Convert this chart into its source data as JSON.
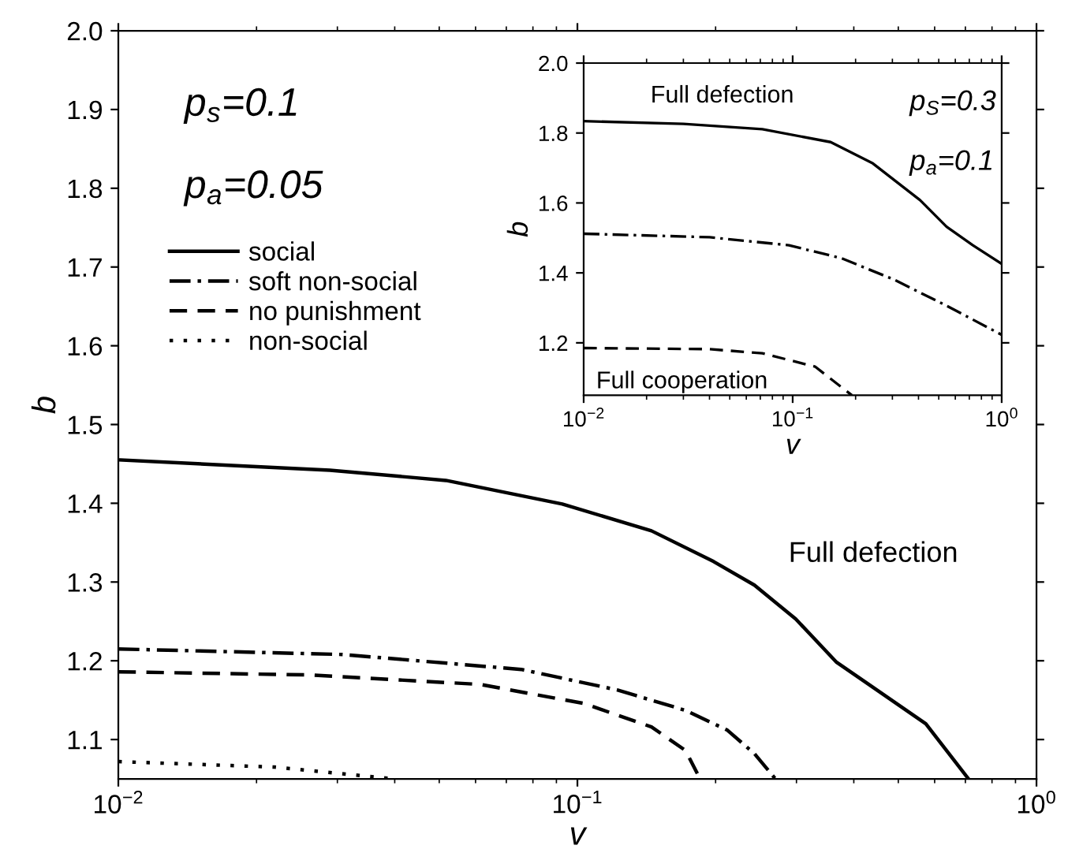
{
  "chart_data": [
    {
      "type": "line",
      "xlabel": "v",
      "ylabel": "b",
      "log": "x",
      "xlim": [
        0.01,
        1
      ],
      "ylim": [
        1.05,
        2.0
      ],
      "xticks": [
        {
          "value": 0.01,
          "label": "10$^{−2}$"
        },
        {
          "value": 0.1,
          "label": "10$^{−1}$"
        },
        {
          "value": 1,
          "label": "10$^{0}$"
        }
      ],
      "yticks": [
        1.1,
        1.2,
        1.3,
        1.4,
        1.5,
        1.6,
        1.7,
        1.8,
        1.9,
        {
          "value": 2.0,
          "label": "2.0"
        }
      ],
      "legend": "top left",
      "grid": false,
      "marker": "none",
      "annotations": [
        "p$_{s}$=0.1",
        "p$_{a}$=0.05",
        "Full defection"
      ],
      "series": [
        {
          "name": "social",
          "color": "#000000",
          "line_style": "solid",
          "x": [
            0.0101,
            0.0289,
            0.0517,
            0.0927,
            0.145,
            0.198,
            0.243,
            0.299,
            0.367,
            0.436,
            0.574,
            0.637,
            0.711
          ],
          "values": [
            1.455,
            1.442,
            1.429,
            1.399,
            1.365,
            1.326,
            1.296,
            1.253,
            1.198,
            1.168,
            1.12,
            1.086,
            1.05
          ]
        },
        {
          "name": "soft non-social",
          "color": "#000000",
          "line_style": "dashdot",
          "x": [
            0.01,
            0.0308,
            0.0755,
            0.122,
            0.172,
            0.212,
            0.243,
            0.27
          ],
          "values": [
            1.215,
            1.208,
            1.189,
            1.163,
            1.137,
            1.112,
            1.082,
            1.05
          ]
        },
        {
          "name": "no punishment",
          "color": "#000000",
          "line_style": "dashed",
          "x": [
            0.01,
            0.026,
            0.0613,
            0.103,
            0.145,
            0.172,
            0.185
          ],
          "values": [
            1.186,
            1.182,
            1.17,
            1.146,
            1.116,
            1.086,
            1.05
          ]
        },
        {
          "name": "non-social",
          "color": "#000000",
          "line_style": "dotted",
          "x": [
            0.01,
            0.0219,
            0.0399
          ],
          "values": [
            1.072,
            1.065,
            1.05
          ]
        }
      ]
    },
    {
      "type": "line",
      "xlabel": "v",
      "ylabel": "b",
      "log": "x",
      "xlim": [
        0.01,
        1
      ],
      "ylim": [
        1.05,
        2.0
      ],
      "xticks": [
        {
          "value": 0.01,
          "label": "10$^{−2}$"
        },
        {
          "value": 0.1,
          "label": "10$^{−1}$"
        },
        {
          "value": 1,
          "label": "10$^{0}$"
        }
      ],
      "yticks": [
        1.2,
        1.4,
        1.6,
        1.8,
        {
          "value": 2.0,
          "label": "2.0"
        }
      ],
      "grid": false,
      "marker": "none",
      "annotations": [
        "Full defection",
        "Full cooperation",
        "p$_{S}$=0.3",
        "p$_{a}$=0.1"
      ],
      "series": [
        {
          "color": "#000000",
          "line_style": "solid",
          "x": [
            0.01,
            0.03,
            0.0716,
            0.152,
            0.242,
            0.407,
            0.545,
            0.728,
            1.0
          ],
          "values": [
            1.834,
            1.826,
            1.811,
            1.774,
            1.713,
            1.608,
            1.532,
            1.479,
            1.426
          ]
        },
        {
          "color": "#000000",
          "line_style": "dashdot",
          "x": [
            0.01,
            0.04,
            0.096,
            0.171,
            0.305,
            0.545,
            1.0
          ],
          "values": [
            1.512,
            1.502,
            1.479,
            1.442,
            1.381,
            1.306,
            1.223
          ]
        },
        {
          "color": "#000000",
          "line_style": "dashed",
          "x": [
            0.01,
            0.04,
            0.0716,
            0.128,
            0.192
          ],
          "values": [
            1.185,
            1.182,
            1.17,
            1.132,
            1.05
          ]
        }
      ]
    }
  ]
}
